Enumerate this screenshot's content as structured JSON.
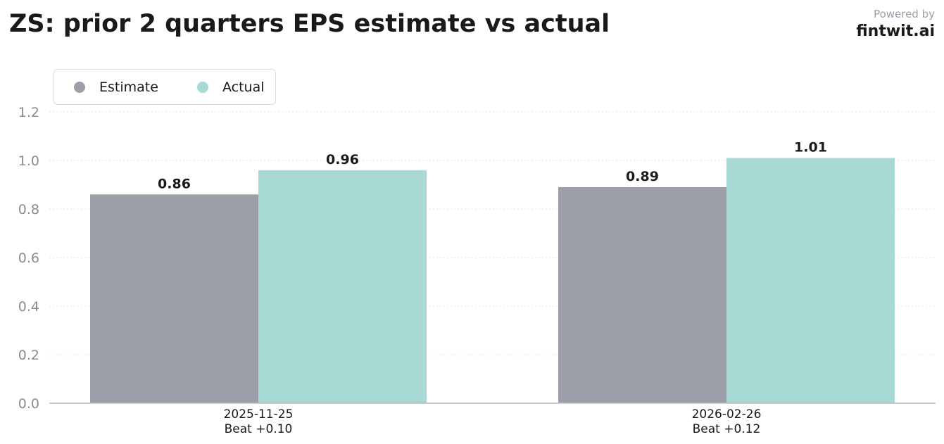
{
  "header": {
    "title": "ZS: prior 2 quarters EPS estimate vs actual",
    "powered_by": "Powered by",
    "brand": "fintwit.ai"
  },
  "chart_data": {
    "type": "bar",
    "categories": [
      "2025-11-25\nBeat +0.10",
      "2026-02-26\nBeat +0.12"
    ],
    "series": [
      {
        "name": "Estimate",
        "values": [
          0.86,
          0.89
        ],
        "labels": [
          "0.86",
          "0.89"
        ],
        "color": "#9b9fa7"
      },
      {
        "name": "Actual",
        "values": [
          0.96,
          1.01
        ],
        "labels": [
          "0.96",
          "1.01"
        ],
        "color": "#a8d9d5"
      }
    ],
    "title": "ZS: prior 2 quarters EPS estimate vs actual",
    "xlabel": "",
    "ylabel": "",
    "ylim": [
      0,
      1.2
    ],
    "yticks": [
      "0.0",
      "0.2",
      "0.4",
      "0.6",
      "0.8",
      "1.0",
      "1.2"
    ],
    "grid": true,
    "legend_position": "top-left"
  }
}
